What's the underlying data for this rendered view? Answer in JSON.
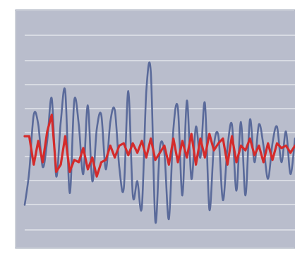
{
  "chart_data": {
    "type": "line",
    "title": "",
    "xlabel": "",
    "ylabel": "",
    "x_tick_labels": [],
    "y_tick_labels": [],
    "grid": true,
    "grid_orientation": "horizontal",
    "legend": false,
    "plot_background": "#b9bdcc",
    "ylim": [
      0,
      10
    ],
    "xlim": [
      0,
      120
    ],
    "series": [
      {
        "color": "#5a6a9a",
        "x": [
          0,
          2,
          4,
          6,
          8,
          10,
          12,
          14,
          16,
          18,
          20,
          22,
          24,
          26,
          28,
          30,
          32,
          34,
          36,
          38,
          40,
          42,
          44,
          46,
          48,
          50,
          52,
          54,
          56,
          58,
          60,
          62,
          64,
          66,
          68,
          70,
          72,
          74,
          76,
          78,
          80,
          82,
          84,
          86,
          88,
          90,
          92,
          94,
          96,
          98,
          100,
          102,
          104,
          106,
          108,
          110,
          112,
          114,
          116,
          118,
          120
        ],
        "y": [
          1.8,
          3.2,
          5.6,
          5.2,
          3.4,
          4.5,
          6.3,
          3.0,
          5.3,
          6.6,
          2.3,
          6.2,
          5.2,
          3.1,
          6.0,
          2.8,
          5.0,
          5.6,
          3.3,
          5.3,
          5.8,
          3.4,
          2.5,
          6.6,
          2.2,
          2.8,
          1.7,
          6.6,
          7.4,
          1.1,
          4.2,
          4.0,
          1.2,
          5.0,
          5.9,
          2.2,
          6.2,
          2.9,
          5.1,
          3.8,
          6.1,
          1.6,
          4.3,
          4.7,
          2.0,
          4.2,
          5.2,
          2.4,
          5.3,
          2.2,
          5.4,
          3.6,
          5.2,
          4.3,
          2.9,
          4.4,
          5.1,
          3.6,
          4.9,
          3.1,
          4.6
        ]
      },
      {
        "color": "#d42b2b",
        "x": [
          0,
          2,
          4,
          6,
          8,
          10,
          12,
          14,
          16,
          18,
          20,
          22,
          24,
          26,
          28,
          30,
          32,
          34,
          36,
          38,
          40,
          42,
          44,
          46,
          48,
          50,
          52,
          54,
          56,
          58,
          60,
          62,
          64,
          66,
          68,
          70,
          72,
          74,
          76,
          78,
          80,
          82,
          84,
          86,
          88,
          90,
          92,
          94,
          96,
          98,
          100,
          102,
          104,
          106,
          108,
          110,
          112,
          114,
          116,
          118,
          120
        ],
        "y": [
          4.7,
          4.7,
          3.5,
          4.5,
          3.6,
          4.9,
          5.6,
          3.2,
          3.5,
          4.7,
          3.2,
          3.7,
          3.6,
          4.2,
          3.3,
          3.8,
          3.0,
          3.6,
          3.7,
          4.3,
          3.8,
          4.3,
          4.4,
          3.9,
          4.4,
          4.0,
          4.5,
          3.8,
          4.6,
          3.7,
          4.0,
          4.3,
          3.5,
          4.6,
          3.6,
          4.5,
          3.8,
          4.8,
          3.5,
          4.6,
          3.8,
          4.8,
          4.1,
          4.4,
          4.6,
          3.5,
          4.7,
          3.6,
          4.3,
          4.1,
          4.6,
          3.9,
          4.3,
          3.6,
          4.4,
          3.7,
          4.4,
          4.2,
          4.3,
          4.0,
          4.3
        ]
      }
    ]
  }
}
